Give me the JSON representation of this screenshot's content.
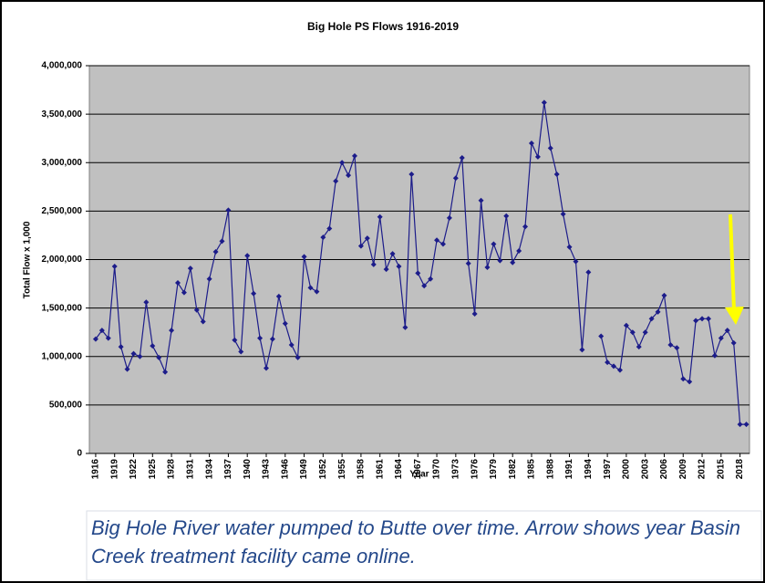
{
  "chart_data": {
    "type": "line",
    "title": "Big Hole PS Flows 1916-2019",
    "xlabel": "Year",
    "ylabel": "Total Flow x 1,000",
    "caption": "Big Hole River water pumped to Butte over time. Arrow shows year Basin Creek treatment facility came online.",
    "x": [
      1916,
      1917,
      1918,
      1919,
      1920,
      1921,
      1922,
      1923,
      1924,
      1925,
      1926,
      1927,
      1928,
      1929,
      1930,
      1931,
      1932,
      1933,
      1934,
      1935,
      1936,
      1937,
      1938,
      1939,
      1940,
      1941,
      1942,
      1943,
      1944,
      1945,
      1946,
      1947,
      1948,
      1949,
      1950,
      1951,
      1952,
      1953,
      1954,
      1955,
      1956,
      1957,
      1958,
      1959,
      1960,
      1961,
      1962,
      1963,
      1964,
      1965,
      1966,
      1967,
      1968,
      1969,
      1970,
      1971,
      1972,
      1973,
      1974,
      1975,
      1976,
      1977,
      1978,
      1979,
      1980,
      1981,
      1982,
      1983,
      1984,
      1985,
      1986,
      1987,
      1988,
      1989,
      1990,
      1991,
      1992,
      1993,
      1994,
      1995,
      1996,
      1997,
      1998,
      1999,
      2000,
      2001,
      2002,
      2003,
      2004,
      2005,
      2006,
      2007,
      2008,
      2009,
      2010,
      2011,
      2012,
      2013,
      2014,
      2015,
      2016,
      2017,
      2018,
      2019
    ],
    "series": [
      {
        "name": "Total Flow",
        "color": "#1c1c8a",
        "values": [
          1180000,
          1270000,
          1190000,
          1930000,
          1100000,
          870000,
          1030000,
          1000000,
          1560000,
          1110000,
          990000,
          840000,
          1270000,
          1760000,
          1660000,
          1910000,
          1480000,
          1360000,
          1800000,
          2080000,
          2190000,
          2510000,
          1170000,
          1050000,
          2040000,
          1650000,
          1190000,
          880000,
          1180000,
          1620000,
          1340000,
          1120000,
          990000,
          2030000,
          1710000,
          1670000,
          2230000,
          2320000,
          2810000,
          3000000,
          2870000,
          3070000,
          2140000,
          2220000,
          1950000,
          2440000,
          1900000,
          2060000,
          1930000,
          1300000,
          2880000,
          1860000,
          1730000,
          1800000,
          2200000,
          2160000,
          2430000,
          2840000,
          3050000,
          1960000,
          1440000,
          2610000,
          1920000,
          2160000,
          1990000,
          2450000,
          1970000,
          2090000,
          2340000,
          3200000,
          3060000,
          3620000,
          3150000,
          2880000,
          2470000,
          2130000,
          1980000,
          1070000,
          1870000,
          null,
          1210000,
          940000,
          900000,
          860000,
          1320000,
          1250000,
          1100000,
          1250000,
          1390000,
          1460000,
          1630000,
          1120000,
          1090000,
          770000,
          740000,
          1370000,
          1390000,
          1390000,
          1010000,
          1190000,
          1270000,
          1140000,
          300000,
          300000
        ]
      }
    ],
    "xlim": [
      1915,
      2019.5
    ],
    "xticks": [
      1916,
      1919,
      1922,
      1925,
      1928,
      1931,
      1934,
      1937,
      1940,
      1943,
      1946,
      1949,
      1952,
      1955,
      1958,
      1961,
      1964,
      1967,
      1970,
      1973,
      1976,
      1979,
      1982,
      1985,
      1988,
      1991,
      1994,
      1997,
      2000,
      2003,
      2006,
      2009,
      2012,
      2015,
      2018
    ],
    "ylim": [
      0,
      4000000
    ],
    "yticks": [
      0,
      {
        "value": 500000,
        "label": "500,000"
      },
      {
        "value": 1000000,
        "label": "1,000,000"
      },
      {
        "value": 1500000,
        "label": "1,500,000"
      },
      {
        "value": 2000000,
        "label": "2,000,000"
      },
      {
        "value": 2500000,
        "label": "2,500,000"
      },
      {
        "value": 3000000,
        "label": "3,000,000"
      },
      {
        "value": 3500000,
        "label": "3,500,000"
      },
      {
        "value": 4000000,
        "label": "4,000,000"
      }
    ],
    "grid": true,
    "plot_background": "#c0c0c0"
  }
}
